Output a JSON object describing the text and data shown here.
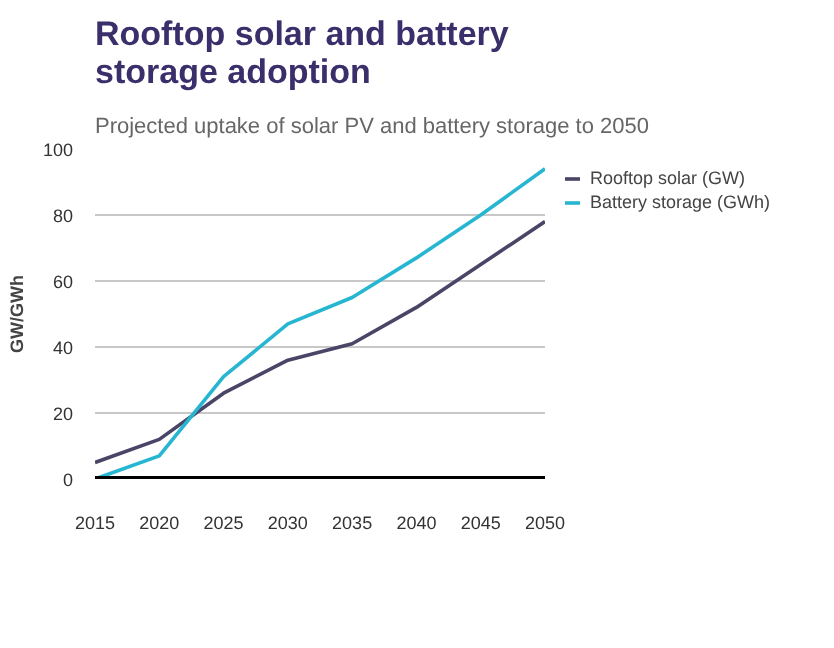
{
  "chart_data": {
    "type": "line",
    "title": "Rooftop solar and battery storage adoption",
    "subtitle": "Projected uptake of solar PV and battery storage to 2050",
    "ylabel": "GW/GWh",
    "x": [
      2015,
      2020,
      2025,
      2030,
      2035,
      2040,
      2045,
      2050
    ],
    "series": [
      {
        "name": "Rooftop solar (GW)",
        "color": "#4a4466",
        "values": [
          5,
          12,
          26,
          36,
          41,
          52,
          65,
          78
        ]
      },
      {
        "name": "Battery storage (GWh)",
        "color": "#27b6d1",
        "values": [
          0,
          7,
          31,
          47,
          55,
          67,
          80,
          94
        ]
      }
    ],
    "xlim": [
      2015,
      2050
    ],
    "xticks": [
      2015,
      2020,
      2025,
      2030,
      2035,
      2040,
      2045,
      2050
    ],
    "ylim": [
      0,
      100
    ],
    "yticks": [
      0,
      20,
      40,
      60,
      80,
      100
    ],
    "grid": "y",
    "legend": "top right",
    "marker": "none",
    "line_style": "solid"
  }
}
